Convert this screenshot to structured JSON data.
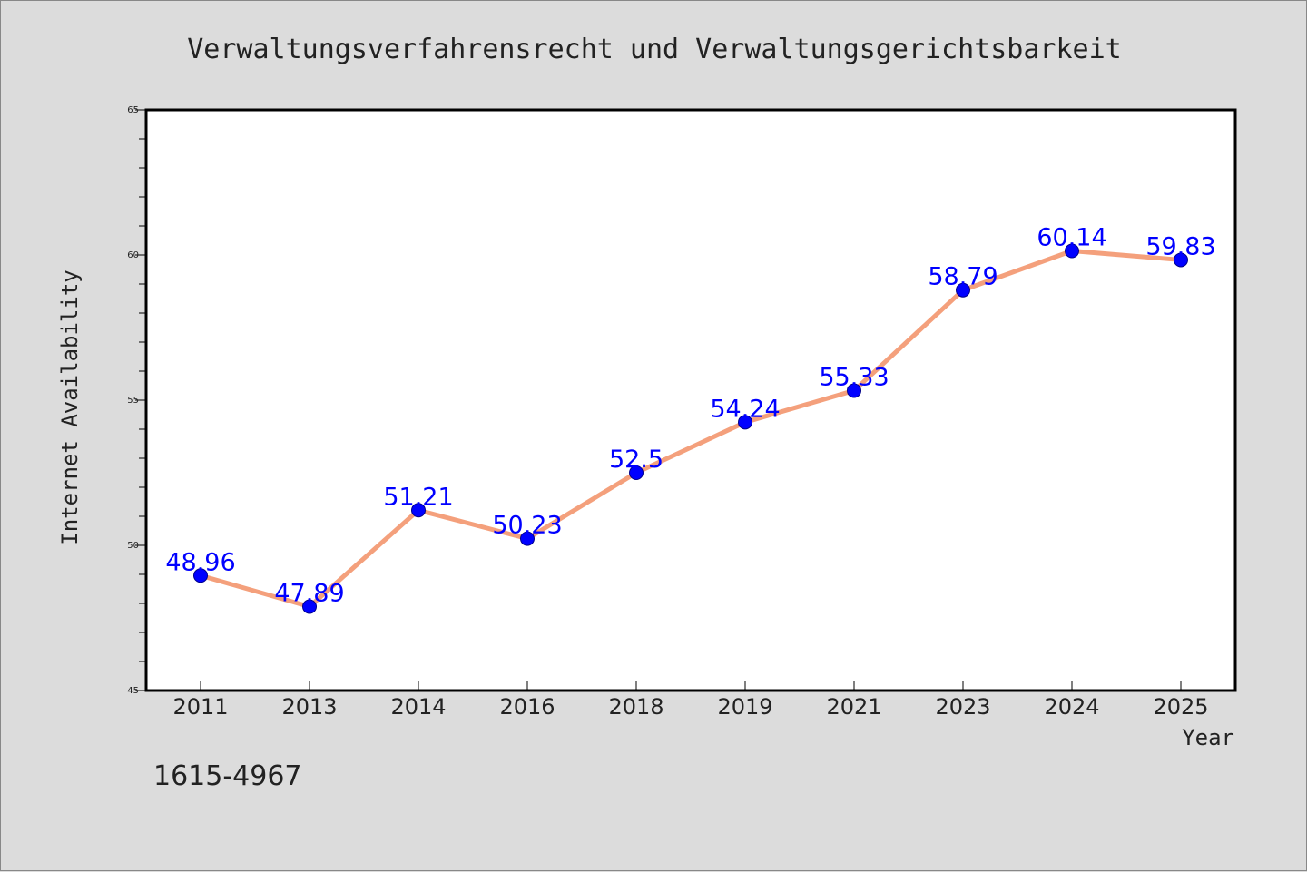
{
  "footnote": "1615-4967",
  "chart_data": {
    "type": "line",
    "title": "Verwaltungsverfahrensrecht und Verwaltungsgerichtsbarkeit",
    "xlabel": "Year",
    "ylabel": "Internet Availability",
    "categories": [
      "2011",
      "2013",
      "2014",
      "2016",
      "2018",
      "2019",
      "2021",
      "2023",
      "2024",
      "2025"
    ],
    "values": [
      48.96,
      47.89,
      51.21,
      50.23,
      52.5,
      54.24,
      55.33,
      58.79,
      60.14,
      59.83
    ],
    "ylim": [
      45,
      65
    ],
    "yticks": [
      45,
      50,
      55,
      60,
      65
    ],
    "grid": false,
    "line_color": "#f4a07c",
    "marker_color": "#0000ff",
    "label_color": "#0000ff"
  }
}
